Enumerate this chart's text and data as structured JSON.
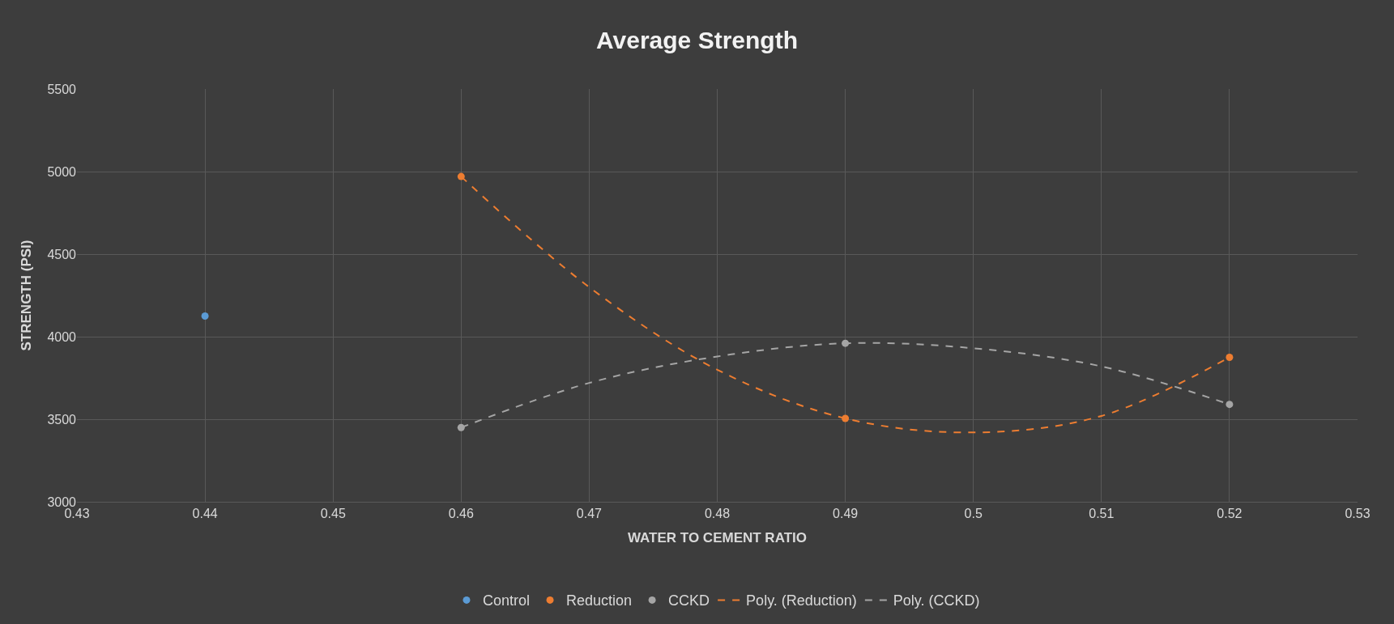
{
  "chart_data": {
    "type": "scatter",
    "title": "Average Strength",
    "xlabel": "WATER TO CEMENT RATIO",
    "ylabel": "STRENGTH (PSI)",
    "xlim": [
      0.43,
      0.53
    ],
    "xticks": [
      0.43,
      0.44,
      0.45,
      0.46,
      0.47,
      0.48,
      0.49,
      {
        "value": 0.5,
        "label": "0.5"
      },
      0.51,
      0.52,
      0.53
    ],
    "ylim": [
      3000,
      5500
    ],
    "yticks": [
      3000,
      3500,
      4000,
      4500,
      5000,
      5500
    ],
    "grid": true,
    "legend": "bottom",
    "marker": "circle",
    "series": [
      {
        "name": "Control",
        "color": "#5b9bd5",
        "x": [
          0.44
        ],
        "values": [
          4125
        ]
      },
      {
        "name": "Reduction",
        "color": "#ed7d31",
        "x": [
          0.46,
          0.49,
          0.52
        ],
        "values": [
          4970,
          3505,
          3875
        ]
      },
      {
        "name": "CCKD",
        "color": "#a5a5a5",
        "x": [
          0.46,
          0.49,
          0.52
        ],
        "values": [
          3450,
          3960,
          3590
        ]
      },
      {
        "name": "Poly. (Reduction)",
        "type": "line",
        "marker": "none",
        "line_style": "dashed",
        "color": "#ed7d31",
        "x": [
          0.46,
          0.47,
          0.48,
          0.49,
          0.5,
          0.51,
          0.52
        ],
        "values": [
          4970,
          4300,
          3800,
          3505,
          3420,
          3520,
          3875
        ]
      },
      {
        "name": "Poly. (CCKD)",
        "type": "line",
        "marker": "none",
        "line_style": "dashed",
        "color": "#a5a5a5",
        "x": [
          0.46,
          0.47,
          0.48,
          0.49,
          0.5,
          0.51,
          0.52
        ],
        "values": [
          3450,
          3720,
          3880,
          3960,
          3930,
          3820,
          3590
        ]
      }
    ]
  }
}
